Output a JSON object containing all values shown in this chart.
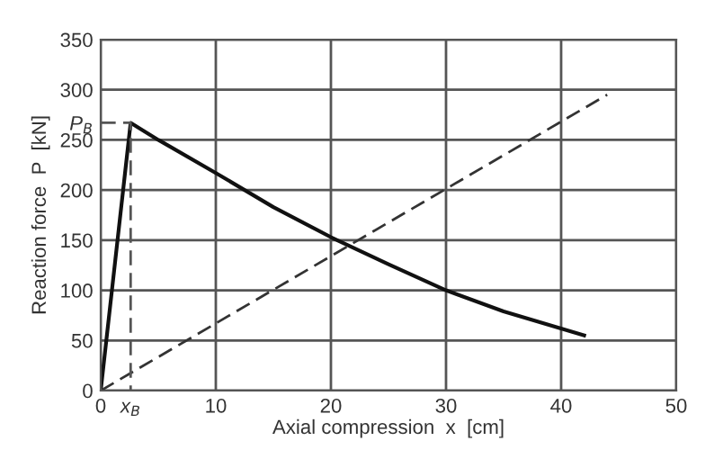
{
  "chart_data": {
    "type": "line",
    "xlabel": "Axial compression  x  [cm]",
    "ylabel": "Reaction force  P  [kN]",
    "series": [
      {
        "color": "#111111",
        "x": [
          0,
          2.6,
          5,
          10,
          15,
          20,
          25,
          30,
          35,
          42
        ],
        "values": [
          0,
          267,
          250,
          217,
          183,
          153,
          126,
          100,
          79,
          55
        ],
        "line_style": "solid"
      },
      {
        "color": "#333333",
        "x": [
          0,
          44
        ],
        "values": [
          0,
          295
        ],
        "line_style": "dashed"
      },
      {
        "color": "#555555",
        "x": [
          0,
          2.6,
          2.6
        ],
        "values": [
          267,
          267,
          0
        ],
        "line_style": "dashed"
      }
    ],
    "xlim": [
      0,
      50
    ],
    "ylim": [
      0,
      350
    ],
    "xticks": [
      0,
      {
        "value": 2.6,
        "label": "x$_{B}$"
      },
      10,
      20,
      30,
      40,
      50
    ],
    "yticks": [
      0,
      50,
      100,
      150,
      200,
      250,
      {
        "value": 267,
        "label": "P$_{B}$"
      },
      300,
      350
    ],
    "grid": true,
    "marker": "none"
  }
}
